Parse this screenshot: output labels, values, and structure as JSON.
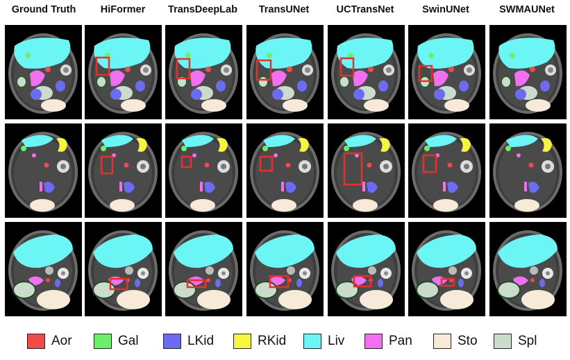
{
  "columns": [
    {
      "title": "Ground Truth"
    },
    {
      "title": "HiFormer"
    },
    {
      "title": "TransDeepLab"
    },
    {
      "title": "TransUNet"
    },
    {
      "title": "UCTransNet"
    },
    {
      "title": "SwinUNet"
    },
    {
      "title": "SWMAUNet"
    }
  ],
  "rows": [
    {
      "slice": "slice-1",
      "highlight_boxes": [
        null,
        {
          "col": 1
        },
        {
          "col": 2
        },
        {
          "col": 3
        },
        {
          "col": 4
        },
        {
          "col": 5
        },
        null
      ]
    },
    {
      "slice": "slice-2",
      "highlight_boxes": [
        null,
        {
          "col": 1
        },
        {
          "col": 2
        },
        {
          "col": 3
        },
        {
          "col": 4
        },
        {
          "col": 5
        },
        null
      ]
    },
    {
      "slice": "slice-3",
      "highlight_boxes": [
        null,
        {
          "col": 1
        },
        {
          "col": 2
        },
        {
          "col": 3
        },
        {
          "col": 4
        },
        {
          "col": 5
        },
        null
      ]
    }
  ],
  "legend": [
    {
      "label": "Aor",
      "color": "#f04a4a"
    },
    {
      "label": "Gal",
      "color": "#6cf06c"
    },
    {
      "label": "LKid",
      "color": "#6c6cf0"
    },
    {
      "label": "RKid",
      "color": "#f5f542"
    },
    {
      "label": "Liv",
      "color": "#6cf5f5"
    },
    {
      "label": "Pan",
      "color": "#f070f0"
    },
    {
      "label": "Sto",
      "color": "#f7ead8"
    },
    {
      "label": "Spl",
      "color": "#ccdccc"
    }
  ],
  "highlight_color": "#e53030"
}
